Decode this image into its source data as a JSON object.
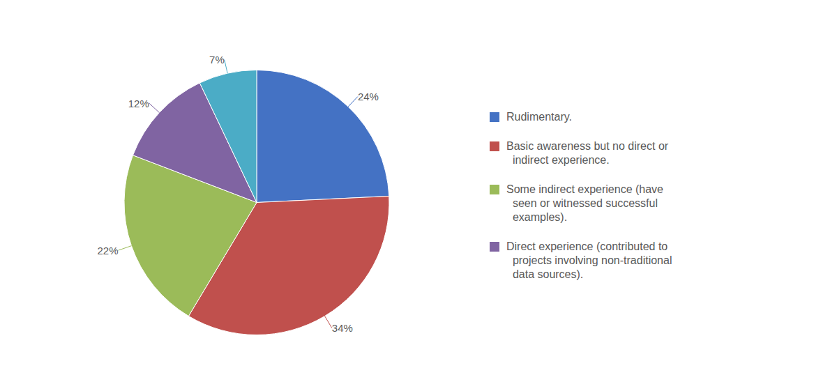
{
  "chart_data": {
    "type": "pie",
    "categories": [
      "Rudimentary.",
      "Basic awareness but no direct or\n  indirect experience.",
      "Some indirect experience (have\n  seen or witnessed successful\n  examples).",
      "Direct experience (contributed to\n  projects involving non-traditional\n  data sources).",
      null
    ],
    "values": [
      24,
      34,
      22,
      12,
      7
    ],
    "value_labels": [
      "24%",
      "34%",
      "22%",
      "12%",
      "7%"
    ],
    "colors": [
      "#4472c4",
      "#c0504d",
      "#9bbb59",
      "#8064a2",
      "#4bacc6"
    ],
    "data_labels": true,
    "legend": "right"
  }
}
